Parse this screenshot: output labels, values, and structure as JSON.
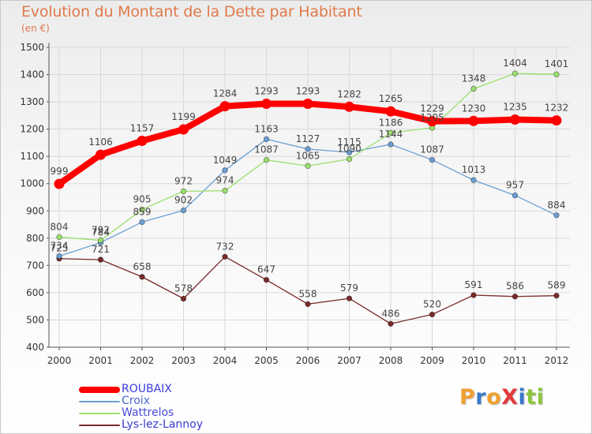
{
  "title": "Evolution du Montant de la Dette par Habitant",
  "unit": "(en €)",
  "brand": "ProXiti",
  "colors": {
    "title": "#e07a4a",
    "grid": "#d8d8d8",
    "axis": "#555555",
    "brand_letters": [
      "#f0a030",
      "#3a78c8",
      "#f0a030",
      "#e23b3b",
      "#3a78c8",
      "#8cc63e",
      "#8cc63e"
    ]
  },
  "chart_data": {
    "type": "line",
    "title": "Evolution du Montant de la Dette par Habitant",
    "ylabel": "(en €)",
    "x": [
      "2000",
      "2001",
      "2002",
      "2003",
      "2004",
      "2005",
      "2006",
      "2007",
      "2008",
      "2009",
      "2010",
      "2011",
      "2012"
    ],
    "ylim": [
      400,
      1500
    ],
    "yticks": [
      400,
      500,
      600,
      700,
      800,
      900,
      1000,
      1100,
      1200,
      1300,
      1400,
      1500
    ],
    "grid": true,
    "legend_position": "bottom-left",
    "series": [
      {
        "name": "ROUBAIX",
        "color": "#ff0000",
        "values": [
          999,
          1106,
          1157,
          1199,
          1284,
          1293,
          1293,
          1282,
          1265,
          1229,
          1230,
          1235,
          1232
        ],
        "labels": [
          "999",
          "1106",
          "1157",
          "1199",
          "1284",
          "1293",
          "1293",
          "1282",
          "1265",
          "1229",
          "1230",
          "1235",
          "1232"
        ]
      },
      {
        "name": "Croix",
        "color": "#6b9fd4",
        "values": [
          734,
          784,
          859,
          902,
          1049,
          1163,
          1127,
          1115,
          1144,
          1087,
          1013,
          957,
          884
        ],
        "labels": [
          "734",
          "784",
          "859",
          "902",
          "1049",
          "1163",
          "1127",
          "1115",
          "1144",
          "1087",
          "1013",
          "957",
          "884"
        ]
      },
      {
        "name": "Wattrelos",
        "color": "#9be06e",
        "values": [
          804,
          792,
          905,
          972,
          974,
          1087,
          1065,
          1090,
          1186,
          1205,
          1348,
          1404,
          1401
        ],
        "labels": [
          "804",
          "792",
          "905",
          "972",
          "974",
          "1087",
          "1065",
          "1090",
          "1186",
          "1205",
          "1348",
          "1404",
          "1401"
        ]
      },
      {
        "name": "Lys-lez-Lannoy",
        "color": "#7a2a2a",
        "values": [
          725,
          721,
          658,
          578,
          732,
          647,
          558,
          579,
          486,
          520,
          591,
          586,
          589
        ],
        "labels": [
          "725",
          "721",
          "658",
          "578",
          "732",
          "647",
          "558",
          "579",
          "486",
          "520",
          "591",
          "586",
          "589"
        ]
      }
    ]
  }
}
